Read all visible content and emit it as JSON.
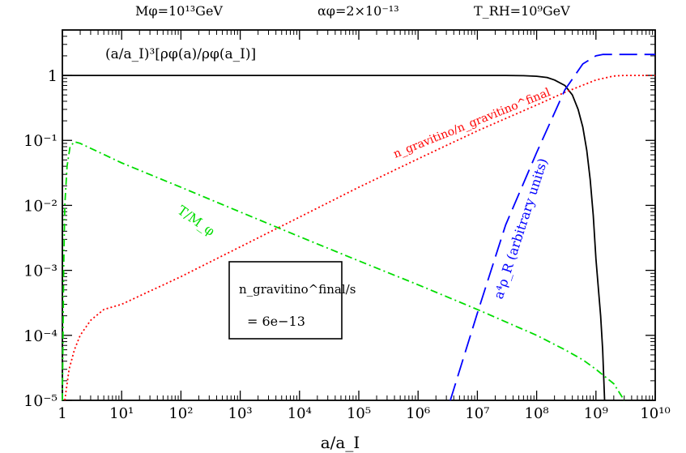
{
  "header": {
    "mass": "Mφ=10¹³GeV",
    "alpha": "αφ=2×10⁻¹³",
    "trh": "T_RH=10⁹GeV"
  },
  "chart_data": {
    "type": "line",
    "title": "",
    "xlabel": "a/a_I",
    "ylabel": "",
    "x_scale": "log",
    "y_scale": "log",
    "xlim": [
      1,
      10000000000
    ],
    "ylim": [
      1e-05,
      5
    ],
    "grid": false,
    "x_tick_labels": [
      "1",
      "10¹",
      "10²",
      "10³",
      "10⁴",
      "10⁵",
      "10⁶",
      "10⁷",
      "10⁸",
      "10⁹",
      "10¹⁰"
    ],
    "y_tick_labels": [
      "1",
      "10⁻¹",
      "10⁻²",
      "10⁻³",
      "10⁻⁴",
      "10⁻⁵"
    ],
    "series": [
      {
        "label": "(a/a_I)³[ρφ(a)/ρφ(a_I)]",
        "color": "#000000",
        "style": "solid",
        "x": [
          1,
          10,
          100,
          1000,
          10000,
          100000,
          1000000,
          10000000,
          30000000,
          60000000,
          100000000,
          150000000,
          200000000,
          300000000,
          400000000,
          500000000,
          600000000,
          700000000,
          800000000,
          900000000,
          1000000000,
          1200000000,
          1300000000,
          1400000000
        ],
        "y": [
          1,
          1,
          1,
          1,
          1,
          1,
          1,
          1,
          1,
          0.99,
          0.97,
          0.93,
          0.85,
          0.7,
          0.5,
          0.3,
          0.16,
          0.07,
          0.025,
          0.007,
          0.0015,
          0.0002,
          6e-05,
          1e-05
        ]
      },
      {
        "label": "n_gravitino/n_gravitino^final",
        "color": "#ff0000",
        "style": "dotted",
        "x": [
          1.1,
          1.3,
          1.6,
          2,
          3,
          5,
          10,
          100,
          1000,
          10000,
          100000,
          1000000,
          10000000,
          100000000,
          300000000,
          1000000000,
          2000000000,
          3000000000,
          10000000000
        ],
        "y": [
          1e-05,
          3e-05,
          6e-05,
          0.0001,
          0.00017,
          0.00025,
          0.0003,
          0.0008,
          0.0023,
          0.0066,
          0.019,
          0.052,
          0.14,
          0.35,
          0.55,
          0.85,
          0.98,
          1,
          1
        ]
      },
      {
        "label": "T/M_φ",
        "color": "#00dd00",
        "style": "dashdot",
        "x": [
          1,
          1.05,
          1.1,
          1.2,
          1.35,
          1.6,
          2,
          10,
          100,
          1000,
          10000,
          100000,
          1000000,
          10000000,
          100000000,
          300000000,
          600000000,
          1000000000,
          2000000000,
          3000000000
        ],
        "y": [
          1e-05,
          0.001,
          0.01,
          0.04,
          0.08,
          0.095,
          0.09,
          0.045,
          0.019,
          0.0079,
          0.0033,
          0.0014,
          0.0006,
          0.00025,
          0.0001,
          6e-05,
          4.2e-05,
          3e-05,
          1.8e-05,
          1e-05
        ]
      },
      {
        "label": "a⁴ρ_R (arbitrary units)",
        "color": "#0000ff",
        "style": "dashed",
        "x": [
          3500000,
          10000000,
          30000000,
          100000000,
          300000000,
          600000000,
          1000000000,
          1300000000,
          2000000000,
          10000000000
        ],
        "y": [
          1e-05,
          0.00022,
          0.005,
          0.065,
          0.6,
          1.5,
          2.0,
          2.1,
          2.1,
          2.1
        ]
      }
    ],
    "annotations": {
      "box_line1": "n_gravitino^final/s",
      "box_line2": "= 6e−13"
    }
  }
}
